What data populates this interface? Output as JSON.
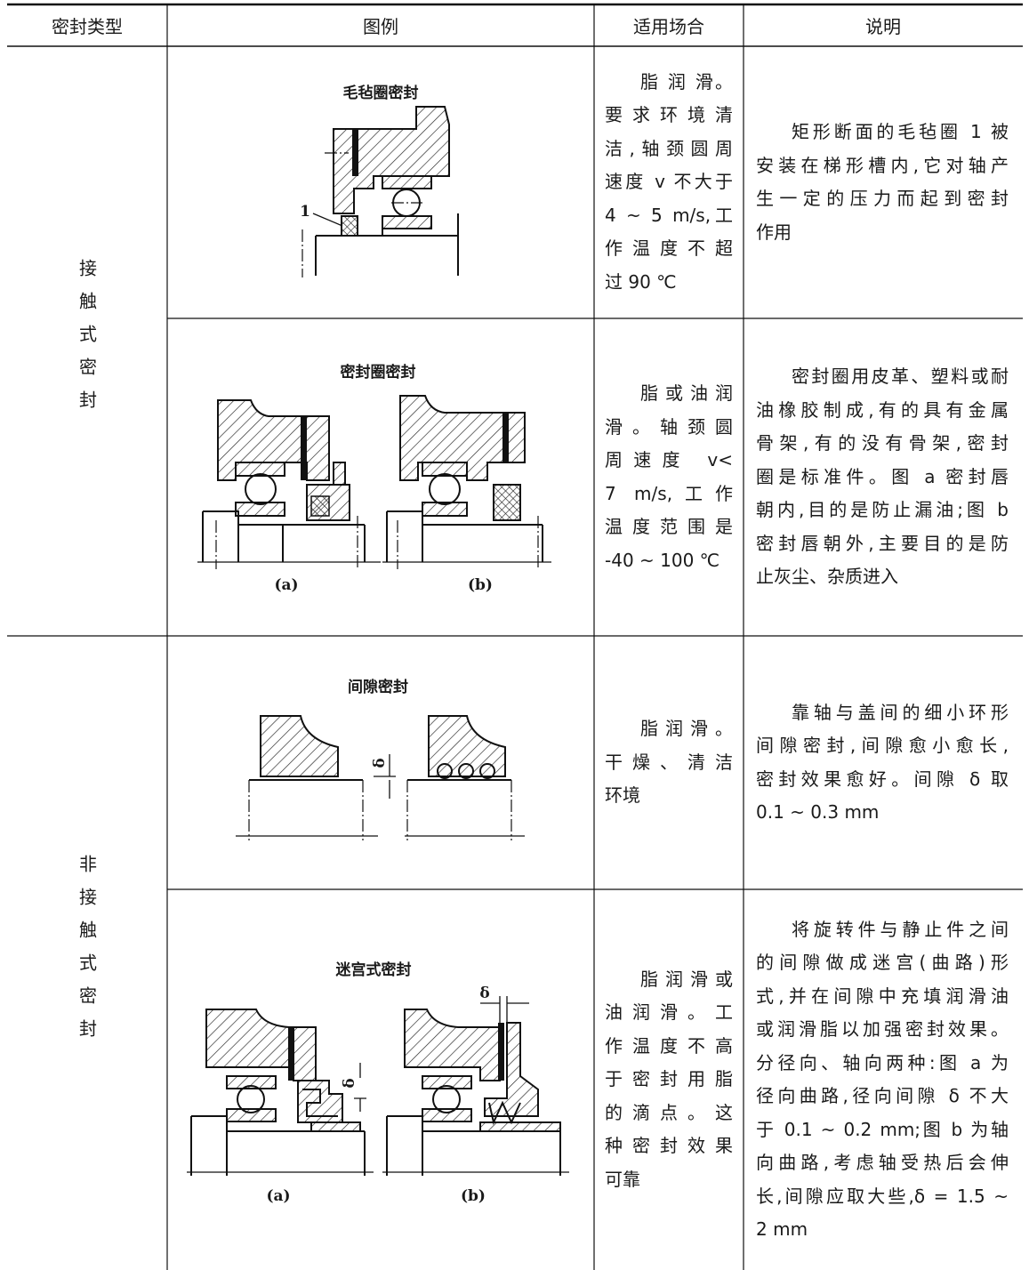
{
  "header": [
    "密封类型",
    "图例",
    "适用场合",
    "说明"
  ],
  "groups": [
    {
      "type": "接触式密封",
      "rows": [
        {
          "figure": {
            "title": "毛毡圈密封",
            "labels": [
              "1"
            ]
          },
          "application": [
            "脂 润 滑。",
            "要求环境清",
            "洁,轴颈圆周",
            "速度 v 不大于",
            "4 ~ 5 m/s,工",
            "作温度不超",
            "过 90 ℃"
          ],
          "description": [
            "矩形断面的毛毡圈 1 被",
            "安装在梯形槽内,它对轴产",
            "生一定的压力而起到密封",
            "作用"
          ]
        },
        {
          "figure": {
            "title": "密封圈密封",
            "labels": [
              "(a)",
              "(b)"
            ]
          },
          "application": [
            "脂或油润",
            "滑。轴颈圆",
            "周速度 v<",
            "7 m/s,工作",
            "温度范围是",
            "-40 ~ 100 ℃"
          ],
          "description": [
            "密封圈用皮革、塑料或耐",
            "油橡胶制成,有的具有金属",
            "骨架,有的没有骨架,密封",
            "圈是标准件。图 a 密封唇",
            "朝内,目的是防止漏油;图 b",
            "密封唇朝外,主要目的是防",
            "止灰尘、杂质进入"
          ]
        }
      ]
    },
    {
      "type": "非接触式密封",
      "rows": [
        {
          "figure": {
            "title": "间隙密封",
            "labels": [
              "δ"
            ]
          },
          "application": [
            "脂润滑。",
            "干燥、清洁",
            "环境"
          ],
          "description": [
            "靠轴与盖间的细小环形",
            "间隙密封,间隙愈小愈长,",
            "密封效果愈好。间隙 δ 取",
            "0.1 ~ 0.3 mm"
          ]
        },
        {
          "figure": {
            "title": "迷宫式密封",
            "labels": [
              "δ",
              "(a)",
              "(b)",
              "δ"
            ]
          },
          "application": [
            "脂润滑或",
            "油润滑。工",
            "作温度不高",
            "于密封用脂",
            "的滴点。这",
            "种密封效果",
            "可靠"
          ],
          "description": [
            "将旋转件与静止件之间",
            "的间隙做成迷宫(曲路)形",
            "式,并在间隙中充填润滑油",
            "或润滑脂以加强密封效果。",
            "分径向、轴向两种:图 a 为",
            "径向曲路,径向间隙 δ 不大",
            "于 0.1 ~ 0.2 mm;图 b 为轴",
            "向曲路,考虑轴受热后会伸",
            "长,间隙应取大些,δ = 1.5 ~",
            "2 mm"
          ]
        }
      ]
    }
  ]
}
